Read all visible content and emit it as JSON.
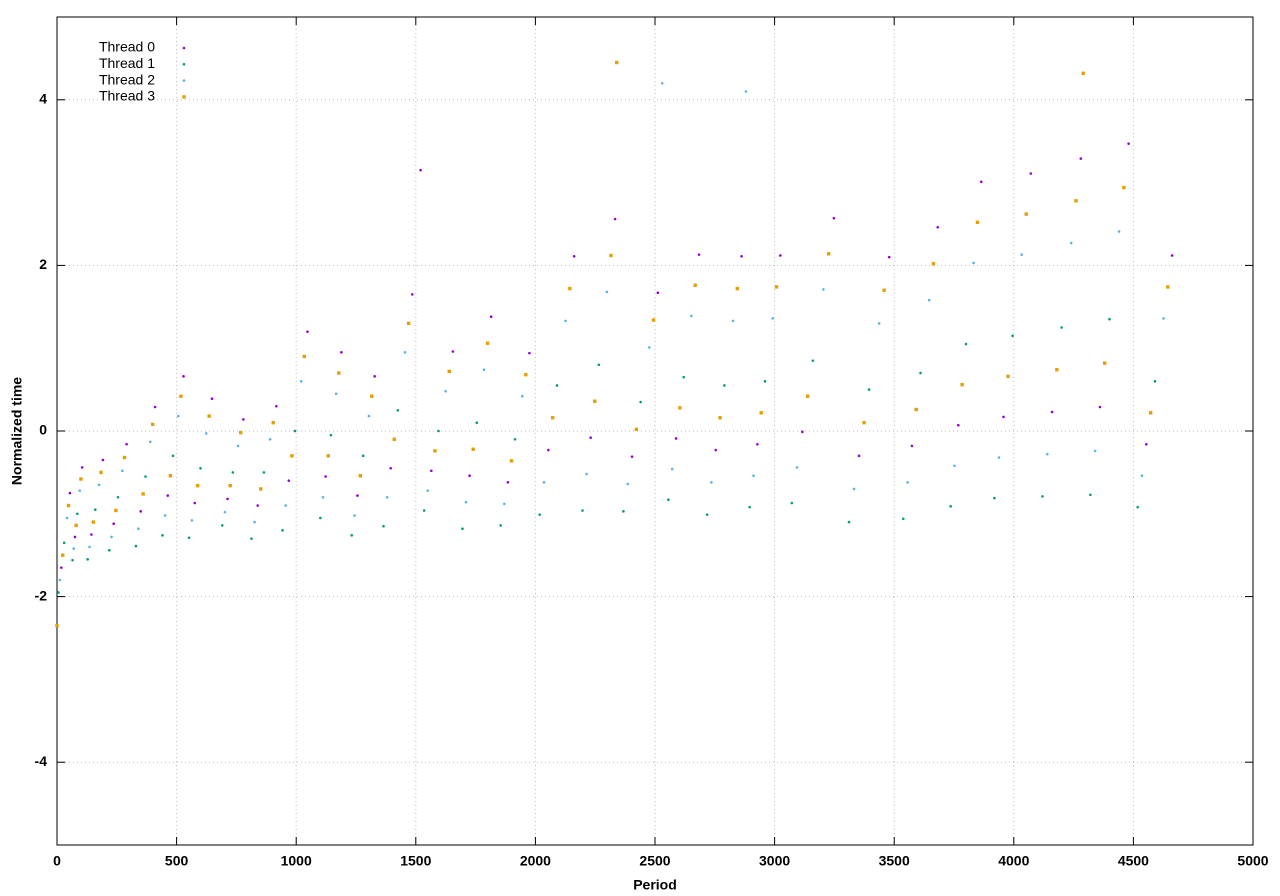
{
  "chart_data": {
    "type": "scatter",
    "xlabel": "Period",
    "ylabel": "Normalized time",
    "xlim": [
      0,
      5000
    ],
    "ylim": [
      -5,
      5
    ],
    "xticks": [
      0,
      500,
      1000,
      1500,
      2000,
      2500,
      3000,
      3500,
      4000,
      4500,
      5000
    ],
    "yticks": [
      -4,
      -2,
      0,
      2,
      4
    ],
    "grid": true,
    "legend": "upper-left",
    "series": [
      {
        "name": "Thread 0",
        "color": "#9400d3",
        "marker": "dot",
        "x": [
          18,
          54,
          75,
          105,
          144,
          192,
          237,
          291,
          350,
          410,
          463,
          529,
          576,
          648,
          713,
          779,
          839,
          917,
          969,
          1047,
          1123,
          1189,
          1256,
          1328,
          1395,
          1485,
          1565,
          1655,
          1725,
          1815,
          1885,
          1975,
          2054,
          2162,
          2231,
          2333,
          2404,
          2512,
          2588,
          2684,
          2754,
          2862,
          2928,
          3024,
          3116,
          3248,
          3353,
          3479,
          3574,
          3682,
          3768,
          3864,
          3957,
          4071,
          4160,
          4280,
          4360,
          4480,
          4554,
          4662,
          1520
        ],
        "values": [
          -1.65,
          -0.75,
          -1.28,
          -0.44,
          -1.25,
          -0.35,
          -1.12,
          -0.16,
          -0.97,
          0.29,
          -0.78,
          0.66,
          -0.87,
          0.39,
          -0.82,
          0.14,
          -0.9,
          0.3,
          -0.6,
          1.2,
          -0.55,
          0.95,
          -0.78,
          0.66,
          -0.45,
          1.65,
          -0.48,
          0.96,
          -0.54,
          1.38,
          -0.62,
          0.94,
          -0.23,
          2.11,
          -0.08,
          2.56,
          -0.31,
          1.67,
          -0.09,
          2.13,
          -0.23,
          2.11,
          -0.16,
          2.12,
          -0.01,
          2.57,
          -0.3,
          2.1,
          -0.18,
          2.46,
          0.07,
          3.01,
          0.17,
          3.11,
          0.23,
          3.29,
          0.29,
          3.47,
          -0.16,
          2.12,
          3.15
        ]
      },
      {
        "name": "Thread 1",
        "color": "#009e73",
        "marker": "dot",
        "x": [
          6,
          30,
          65,
          85,
          128,
          160,
          219,
          255,
          330,
          370,
          441,
          485,
          552,
          600,
          691,
          735,
          813,
          865,
          943,
          995,
          1101,
          1145,
          1232,
          1280,
          1365,
          1425,
          1535,
          1595,
          1695,
          1755,
          1855,
          1915,
          2018,
          2090,
          2197,
          2265,
          2368,
          2440,
          2556,
          2620,
          2718,
          2790,
          2896,
          2960,
          3072,
          3160,
          3311,
          3395,
          3538,
          3610,
          3736,
          3800,
          3919,
          3995,
          4120,
          4200,
          4320,
          4400,
          4518,
          4590
        ],
        "values": [
          -1.95,
          -1.35,
          -1.56,
          -1.0,
          -1.55,
          -0.95,
          -1.44,
          -0.8,
          -1.39,
          -0.55,
          -1.26,
          -0.3,
          -1.29,
          -0.45,
          -1.14,
          -0.5,
          -1.3,
          -0.5,
          -1.2,
          0,
          -1.05,
          -0.05,
          -1.26,
          -0.3,
          -1.15,
          0.25,
          -0.96,
          0,
          -1.18,
          0.1,
          -1.14,
          -0.1,
          -1.01,
          0.55,
          -0.96,
          0.8,
          -0.97,
          0.35,
          -0.83,
          0.65,
          -1.01,
          0.55,
          -0.92,
          0.6,
          -0.87,
          0.85,
          -1.1,
          0.5,
          -1.06,
          0.7,
          -0.91,
          1.05,
          -0.81,
          1.15,
          -0.79,
          1.25,
          -0.77,
          1.35,
          -0.92,
          0.6
        ]
      },
      {
        "name": "Thread 2",
        "color": "#56b4e9",
        "marker": "dot",
        "x": [
          12,
          42,
          70,
          95,
          136,
          176,
          228,
          273,
          340,
          390,
          452,
          507,
          564,
          624,
          702,
          757,
          826,
          891,
          956,
          1021,
          1112,
          1167,
          1244,
          1304,
          1380,
          1455,
          1550,
          1625,
          1710,
          1785,
          1870,
          1945,
          2036,
          2126,
          2214,
          2299,
          2386,
          2476,
          2572,
          2652,
          2736,
          2826,
          2912,
          2992,
          3094,
          3204,
          3332,
          3437,
          3556,
          3646,
          3752,
          3832,
          3938,
          4033,
          4140,
          4240,
          4340,
          4440,
          4536,
          4626,
          2530,
          2880
        ],
        "values": [
          -1.8,
          -1.05,
          -1.42,
          -0.72,
          -1.4,
          -0.65,
          -1.28,
          -0.48,
          -1.18,
          -0.13,
          -1.02,
          0.18,
          -1.08,
          -0.03,
          -0.98,
          -0.18,
          -1.1,
          -0.1,
          -0.9,
          0.6,
          -0.8,
          0.45,
          -1.02,
          0.18,
          -0.8,
          0.95,
          -0.72,
          0.48,
          -0.86,
          0.74,
          -0.88,
          0.42,
          -0.62,
          1.33,
          -0.52,
          1.68,
          -0.64,
          1.01,
          -0.46,
          1.39,
          -0.62,
          1.33,
          -0.54,
          1.36,
          -0.44,
          1.71,
          -0.7,
          1.3,
          -0.62,
          1.58,
          -0.42,
          2.03,
          -0.32,
          2.13,
          -0.28,
          2.27,
          -0.24,
          2.41,
          -0.54,
          1.36,
          4.2,
          4.1
        ]
      },
      {
        "name": "Thread 3",
        "color": "#e69f00",
        "marker": "square",
        "x": [
          24,
          48,
          80,
          100,
          152,
          184,
          246,
          282,
          360,
          400,
          474,
          518,
          588,
          636,
          724,
          768,
          852,
          904,
          982,
          1034,
          1134,
          1178,
          1268,
          1316,
          1410,
          1470,
          1580,
          1640,
          1740,
          1800,
          1900,
          1960,
          2072,
          2144,
          2248,
          2316,
          2422,
          2494,
          2604,
          2668,
          2772,
          2844,
          2944,
          3008,
          3138,
          3226,
          3374,
          3458,
          3592,
          3664,
          3784,
          3848,
          3976,
          4052,
          4180,
          4260,
          4380,
          4460,
          4572,
          4644,
          2340,
          4290,
          0
        ],
        "values": [
          -1.5,
          -0.9,
          -1.14,
          -0.58,
          -1.1,
          -0.5,
          -0.96,
          -0.32,
          -0.76,
          0.08,
          -0.54,
          0.42,
          -0.66,
          0.18,
          -0.66,
          -0.02,
          -0.7,
          0.1,
          -0.3,
          0.9,
          -0.3,
          0.7,
          -0.54,
          0.42,
          -0.1,
          1.3,
          -0.24,
          0.72,
          -0.22,
          1.06,
          -0.36,
          0.68,
          0.16,
          1.72,
          0.36,
          2.12,
          0.02,
          1.34,
          0.28,
          1.76,
          0.16,
          1.72,
          0.22,
          1.74,
          0.42,
          2.14,
          0.1,
          1.7,
          0.26,
          2.02,
          0.56,
          2.52,
          0.66,
          2.62,
          0.74,
          2.78,
          0.82,
          2.94,
          0.22,
          1.74,
          4.45,
          4.32,
          -2.35
        ]
      }
    ]
  }
}
